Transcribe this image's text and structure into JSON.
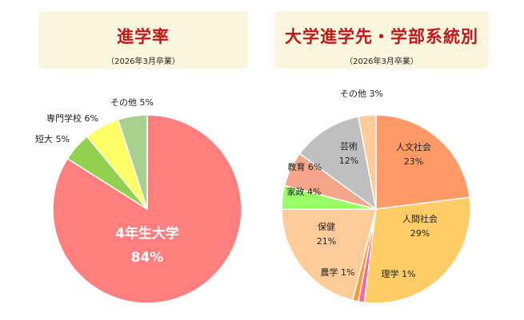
{
  "chart_data": [
    {
      "type": "pie",
      "title": "進学率",
      "subtitle": "（2026年3月卒業）",
      "start_angle": 0,
      "slices": [
        {
          "label": "4年生大学",
          "value": 84,
          "pct": "84%",
          "color": "#ff7f7f"
        },
        {
          "label": "短大",
          "value": 5,
          "pct": "5%",
          "color": "#92d050"
        },
        {
          "label": "専門学校",
          "value": 6,
          "pct": "6%",
          "color": "#ffff66"
        },
        {
          "label": "その他",
          "value": 5,
          "pct": "5%",
          "color": "#a9d18e"
        }
      ]
    },
    {
      "type": "pie",
      "title": "大学進学先・学部系統別",
      "subtitle": "（2026年3月卒業）",
      "start_angle": 0,
      "slices": [
        {
          "label": "人文社会",
          "value": 23,
          "pct": "23%",
          "color": "#ff9966"
        },
        {
          "label": "人間社会",
          "value": 29,
          "pct": "29%",
          "color": "#ffcc66"
        },
        {
          "label": "理学",
          "value": 1,
          "pct": "1%",
          "color": "#ff6699"
        },
        {
          "label": "農学",
          "value": 1,
          "pct": "1%",
          "color": "#ff9933"
        },
        {
          "label": "保健",
          "value": 21,
          "pct": "21%",
          "color": "#ffcc99"
        },
        {
          "label": "家政",
          "value": 4,
          "pct": "4%",
          "color": "#99ff66"
        },
        {
          "label": "教育",
          "value": 6,
          "pct": "6%",
          "color": "#f4a58a"
        },
        {
          "label": "芸術",
          "value": 12,
          "pct": "12%",
          "color": "#bfbfbf"
        },
        {
          "label": "その他",
          "value": 3,
          "pct": "3%",
          "color": "#ffcc99"
        }
      ]
    }
  ]
}
